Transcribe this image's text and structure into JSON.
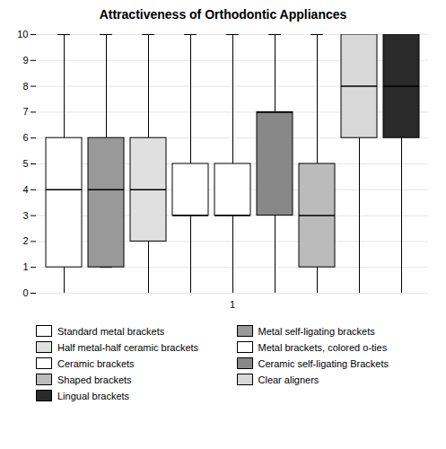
{
  "chart_data": {
    "type": "box",
    "title": "Attractiveness of Orthodontic Appliances",
    "categories": [
      "1"
    ],
    "series": [
      {
        "name": "Standard metal brackets",
        "color": "#ffffff",
        "whisker_lo": 0,
        "q1": 1,
        "median": 4,
        "q3": 6,
        "whisker_hi": 10
      },
      {
        "name": "Metal self-ligating brackets",
        "color": "#999999",
        "whisker_lo": 1,
        "q1": 1,
        "median": 4,
        "q3": 6,
        "whisker_hi": 10
      },
      {
        "name": "Half metal-half ceramic brackets",
        "color": "#e0e0e0",
        "whisker_lo": 0,
        "q1": 2,
        "median": 4,
        "q3": 6,
        "whisker_hi": 10
      },
      {
        "name": "Metal brackets, colored o-ties",
        "color": "#ffffff",
        "whisker_lo": 0,
        "q1": 3,
        "median": 3,
        "q3": 5,
        "whisker_hi": 10
      },
      {
        "name": "Ceramic brackets",
        "color": "#ffffff",
        "whisker_lo": 0,
        "q1": 3,
        "median": 3,
        "q3": 5,
        "whisker_hi": 10
      },
      {
        "name": "Ceramic self-ligating Brackets",
        "color": "#888888",
        "whisker_lo": 0,
        "q1": 3,
        "median": 7,
        "q3": 7,
        "whisker_hi": 10
      },
      {
        "name": "Shaped brackets",
        "color": "#bbbbbb",
        "whisker_lo": 0,
        "q1": 1,
        "median": 3,
        "q3": 5,
        "whisker_hi": 10
      },
      {
        "name": "Clear aligners",
        "color": "#d8d8d8",
        "whisker_lo": 0,
        "q1": 6,
        "median": 8,
        "q3": 10,
        "whisker_hi": 10
      },
      {
        "name": "Lingual brackets",
        "color": "#2a2a2a",
        "whisker_lo": 0,
        "q1": 6,
        "median": 8,
        "q3": 10,
        "whisker_hi": 10
      }
    ],
    "ylim": [
      0,
      10
    ],
    "yticks": [
      0,
      1,
      2,
      3,
      4,
      5,
      6,
      7,
      8,
      9,
      10
    ],
    "grid": true,
    "legend": "bottom"
  }
}
